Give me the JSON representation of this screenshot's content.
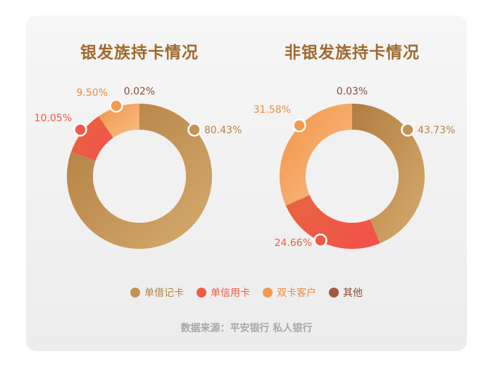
{
  "colors": {
    "debit": "#c39256",
    "credit": "#ef5b45",
    "dual": "#f39a4e",
    "other": "#a3573d",
    "title": "#a06a2e"
  },
  "legend": [
    {
      "label": "单借记卡",
      "color": "#c39256"
    },
    {
      "label": "单信用卡",
      "color": "#ef5b45"
    },
    {
      "label": "双卡客户",
      "color": "#f39a4e"
    },
    {
      "label": "其他",
      "color": "#a3573d"
    }
  ],
  "source": "数据来源：平安银行 私人银行",
  "chart_data": [
    {
      "type": "pie",
      "title": "银发族持卡情况",
      "categories": [
        "单借记卡",
        "单信用卡",
        "双卡客户",
        "其他"
      ],
      "values": [
        80.43,
        10.05,
        9.5,
        0.02
      ],
      "labels": [
        "80.43%",
        "10.05%",
        "9.50%",
        "0.02%"
      ],
      "donut": true
    },
    {
      "type": "pie",
      "title": "非银发族持卡情况",
      "categories": [
        "单借记卡",
        "单信用卡",
        "双卡客户",
        "其他"
      ],
      "values": [
        43.73,
        24.66,
        31.58,
        0.03
      ],
      "labels": [
        "43.73%",
        "24.66%",
        "31.58%",
        "0.03%"
      ],
      "donut": true
    }
  ]
}
